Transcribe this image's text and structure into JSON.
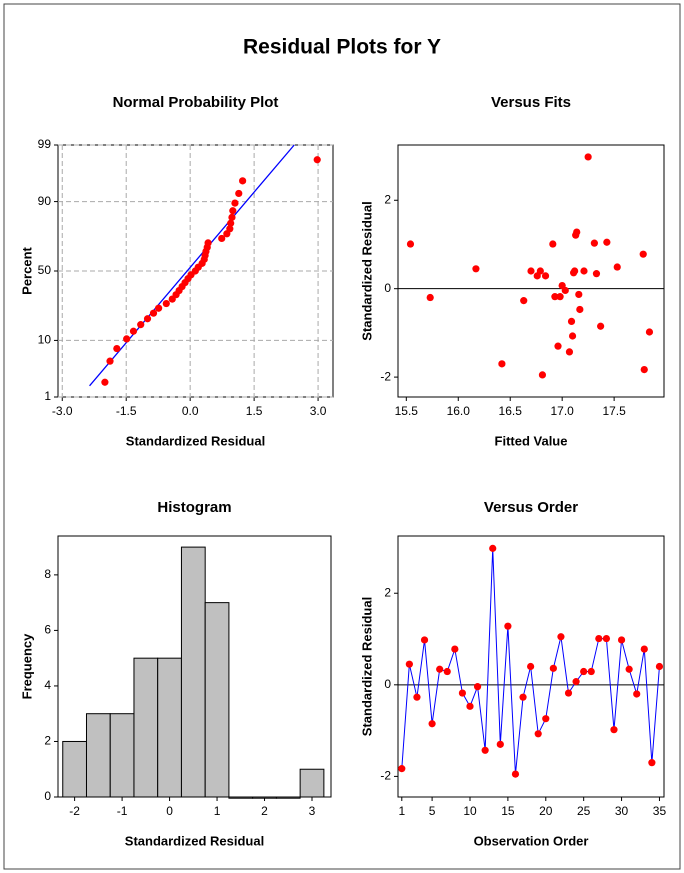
{
  "title": "Residual Plots for Y",
  "chart_data": [
    {
      "type": "probability",
      "title": "Normal Probability Plot",
      "x_label": "Standardized Residual",
      "y_label": "Percent",
      "x": [
        -2.0,
        -1.88,
        -1.72,
        -1.49,
        -1.33,
        -1.16,
        -1.0,
        -0.86,
        -0.74,
        -0.56,
        -0.42,
        -0.33,
        -0.26,
        -0.19,
        -0.12,
        -0.05,
        0.02,
        0.12,
        0.19,
        0.28,
        0.33,
        0.35,
        0.37,
        0.4,
        0.42,
        0.74,
        0.86,
        0.93,
        0.95,
        0.98,
        1.0,
        1.05,
        1.14,
        1.23,
        2.98
      ],
      "values": [
        2.0,
        4.8,
        7.6,
        10.5,
        13.3,
        16.1,
        18.9,
        21.8,
        24.6,
        27.4,
        30.2,
        33.1,
        35.9,
        38.7,
        41.5,
        44.4,
        47.2,
        50.0,
        52.8,
        55.6,
        58.5,
        61.3,
        64.1,
        66.9,
        69.8,
        72.6,
        75.4,
        78.2,
        81.1,
        83.9,
        86.7,
        89.5,
        92.4,
        95.2,
        98.0
      ],
      "color": "#ff0000",
      "fit_line": {
        "x": [
          -2.36,
          2.44
        ],
        "values": [
          1.7,
          99
        ],
        "color": "#0000ff"
      },
      "xlim": [
        -3.1,
        3.35
      ],
      "ylim": [
        1,
        99
      ],
      "yscale": "probability",
      "xticks": [
        {
          "value": -3,
          "label": "-3.0"
        },
        -1.5,
        {
          "value": 0,
          "label": "0.0"
        },
        1.5,
        {
          "value": 3,
          "label": "3.0"
        }
      ],
      "yticks": [
        1,
        10,
        50,
        90,
        99
      ],
      "grid": true
    },
    {
      "type": "scatter",
      "title": "Versus Fits",
      "x_label": "Fitted Value",
      "y_label": "Standardized Residual",
      "x": [
        15.54,
        15.73,
        16.17,
        16.42,
        16.63,
        16.7,
        16.76,
        16.79,
        16.81,
        16.84,
        16.91,
        16.93,
        16.96,
        16.98,
        17.0,
        17.03,
        17.07,
        17.09,
        17.1,
        17.11,
        17.12,
        17.13,
        17.14,
        17.16,
        17.17,
        17.21,
        17.31,
        17.33,
        17.37,
        17.43,
        17.53,
        17.78,
        17.79,
        17.84,
        17.25
      ],
      "values": [
        1.01,
        -0.2,
        0.45,
        -1.7,
        -0.27,
        0.4,
        0.29,
        0.4,
        -1.95,
        0.29,
        1.01,
        -0.18,
        -1.3,
        -0.18,
        0.07,
        -0.04,
        -1.43,
        -0.74,
        -1.07,
        0.36,
        0.4,
        1.21,
        1.28,
        -0.13,
        -0.47,
        0.4,
        1.03,
        0.34,
        -0.85,
        1.05,
        0.49,
        0.78,
        -1.83,
        -0.98,
        2.98
      ],
      "color": "#ff0000",
      "hline": 0,
      "xlim": [
        15.42,
        17.98
      ],
      "ylim": [
        -2.45,
        3.25
      ],
      "xticks": [
        15.5,
        {
          "value": 16,
          "label": "16.0"
        },
        16.5,
        {
          "value": 17,
          "label": "17.0"
        },
        17.5
      ],
      "yticks": [
        -2,
        0,
        2
      ],
      "grid": false
    },
    {
      "type": "histogram",
      "title": "Histogram",
      "x_label": "Standardized Residual",
      "y_label": "Frequency",
      "bins": [
        -2.25,
        -1.75,
        -1.25,
        -0.75,
        -0.25,
        0.25,
        0.75,
        1.25,
        1.75,
        2.25,
        2.75,
        3.25
      ],
      "values": [
        2,
        3,
        3,
        5,
        5,
        9,
        7,
        0,
        0,
        0,
        1
      ],
      "color": "#c0c0c0",
      "xlim": [
        -2.35,
        3.4
      ],
      "ylim": [
        0,
        9.4
      ],
      "xticks": [
        -2,
        -1,
        0,
        1,
        2,
        3
      ],
      "yticks": [
        0,
        2,
        4,
        6,
        8
      ],
      "grid": false
    },
    {
      "type": "line",
      "title": "Versus Order",
      "x_label": "Observation Order",
      "y_label": "Standardized Residual",
      "x": [
        1,
        2,
        3,
        4,
        5,
        6,
        7,
        8,
        9,
        10,
        11,
        12,
        13,
        14,
        15,
        16,
        17,
        18,
        19,
        20,
        21,
        22,
        23,
        24,
        25,
        26,
        27,
        28,
        29,
        30,
        31,
        32,
        33,
        34,
        35
      ],
      "values": [
        -1.83,
        0.45,
        -0.27,
        0.98,
        -0.85,
        0.34,
        0.29,
        0.78,
        -0.18,
        -0.47,
        -0.04,
        -1.43,
        2.98,
        -1.3,
        1.28,
        -1.95,
        -0.27,
        0.4,
        -1.07,
        -0.74,
        0.36,
        1.05,
        -0.18,
        0.07,
        0.29,
        0.29,
        1.01,
        1.01,
        -0.98,
        0.98,
        0.34,
        -0.2,
        0.78,
        -1.7,
        0.4
      ],
      "color": "#0000ff",
      "marker_color": "#ff0000",
      "hline": 0,
      "xlim": [
        0.5,
        35.6
      ],
      "ylim": [
        -2.45,
        3.25
      ],
      "xticks": [
        1,
        5,
        10,
        15,
        20,
        25,
        30,
        35
      ],
      "yticks": [
        -2,
        0,
        2
      ],
      "grid": false
    }
  ]
}
